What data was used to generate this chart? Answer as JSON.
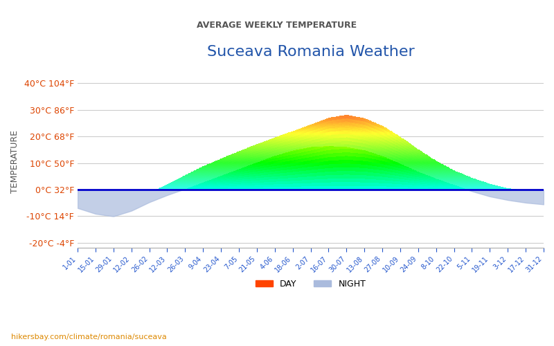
{
  "title": "Suceava Romania Weather",
  "subtitle": "AVERAGE WEEKLY TEMPERATURE",
  "ylabel": "TEMPERATURE",
  "watermark": "hikersbay.com/climate/romania/suceava",
  "xlabels": [
    "1-01",
    "15-01",
    "29-01",
    "12-02",
    "26-02",
    "12-03",
    "26-03",
    "9-04",
    "23-04",
    "7-05",
    "21-05",
    "4-06",
    "18-06",
    "2-07",
    "16-07",
    "30-07",
    "13-08",
    "27-08",
    "10-09",
    "24-09",
    "8-10",
    "22-10",
    "5-11",
    "19-11",
    "3-12",
    "17-12",
    "31-12"
  ],
  "yticks_c": [
    -20,
    -10,
    0,
    10,
    20,
    30,
    40
  ],
  "yticks_f": [
    -4,
    14,
    32,
    50,
    68,
    86,
    104
  ],
  "ylim": [
    -22,
    43
  ],
  "day_temps": [
    -2,
    -5,
    -11,
    -4,
    -1,
    2,
    5,
    10,
    11,
    15,
    17,
    20,
    22,
    24,
    28,
    30,
    27,
    25,
    20,
    15,
    10,
    7,
    4,
    2,
    0,
    -1,
    0
  ],
  "night_temps": [
    -5,
    -10,
    -13,
    -8,
    -4,
    -2,
    0,
    3,
    5,
    8,
    10,
    13,
    15,
    17,
    16,
    17,
    15,
    13,
    10,
    6,
    4,
    2,
    -1,
    -3,
    -4,
    -5,
    -6
  ],
  "title_color": "#2255aa",
  "subtitle_color": "#555555",
  "axis_label_color": "#2255aa",
  "ytick_c_color": "#dd4400",
  "ytick_f_color": "#dd4400",
  "zero_line_color": "#0000cc",
  "night_fill_color": "#aabbdd",
  "background_color": "#ffffff",
  "watermark_color": "#dd8800"
}
